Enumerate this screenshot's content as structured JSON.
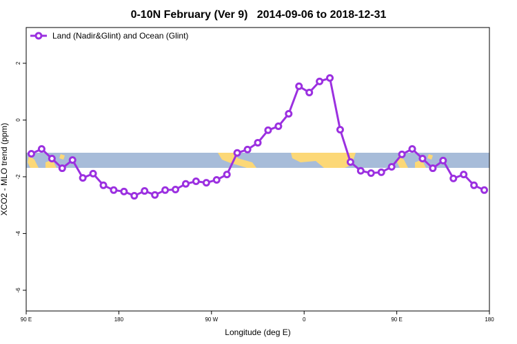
{
  "chart_data": {
    "type": "line",
    "title": "0-10N February (Ver 9)   2014-09-06 to 2018-12-31",
    "x_label": "Longitude (deg E)",
    "y_label": "XCO2 - MLO trend (ppm)",
    "x": [
      95,
      105,
      115,
      125,
      135,
      145,
      155,
      165,
      175,
      185,
      195,
      205,
      215,
      225,
      235,
      245,
      255,
      265,
      275,
      285,
      295,
      305,
      315,
      325,
      335,
      345,
      355,
      365,
      375,
      385,
      395,
      405,
      415,
      425,
      435,
      445,
      455,
      465,
      475,
      485,
      495,
      505,
      515,
      525,
      535
    ],
    "series": [
      {
        "name": "Land (Nadir&Glint) and Ocean (Glint)",
        "color": "#9b30e0",
        "values": [
          -1.19,
          -1.02,
          -1.36,
          -1.7,
          -1.41,
          -2.04,
          -1.89,
          -2.3,
          -2.47,
          -2.52,
          -2.67,
          -2.5,
          -2.64,
          -2.47,
          -2.45,
          -2.25,
          -2.16,
          -2.21,
          -2.11,
          -1.92,
          -1.16,
          -1.04,
          -0.8,
          -0.36,
          -0.22,
          0.22,
          1.19,
          0.97,
          1.36,
          1.48,
          -0.34,
          -1.48,
          -1.79,
          -1.87,
          -1.84,
          -1.65,
          -1.21,
          -1.02,
          -1.36,
          -1.7,
          -1.43,
          -2.06,
          -1.92,
          -2.3,
          -2.47
        ]
      }
    ],
    "xlim": [
      90,
      540
    ],
    "xticks": [
      {
        "value": 90,
        "label": "90 E"
      },
      180,
      {
        "value": 270,
        "label": "90 W"
      },
      {
        "value": 360,
        "label": "0"
      },
      {
        "value": 450,
        "label": "90 E"
      },
      {
        "value": 540,
        "label": "180"
      }
    ],
    "ylim": [
      -6.73,
      3.26
    ],
    "yticks": [
      2,
      0,
      -2,
      -4,
      -6
    ],
    "legend": "top-left"
  }
}
